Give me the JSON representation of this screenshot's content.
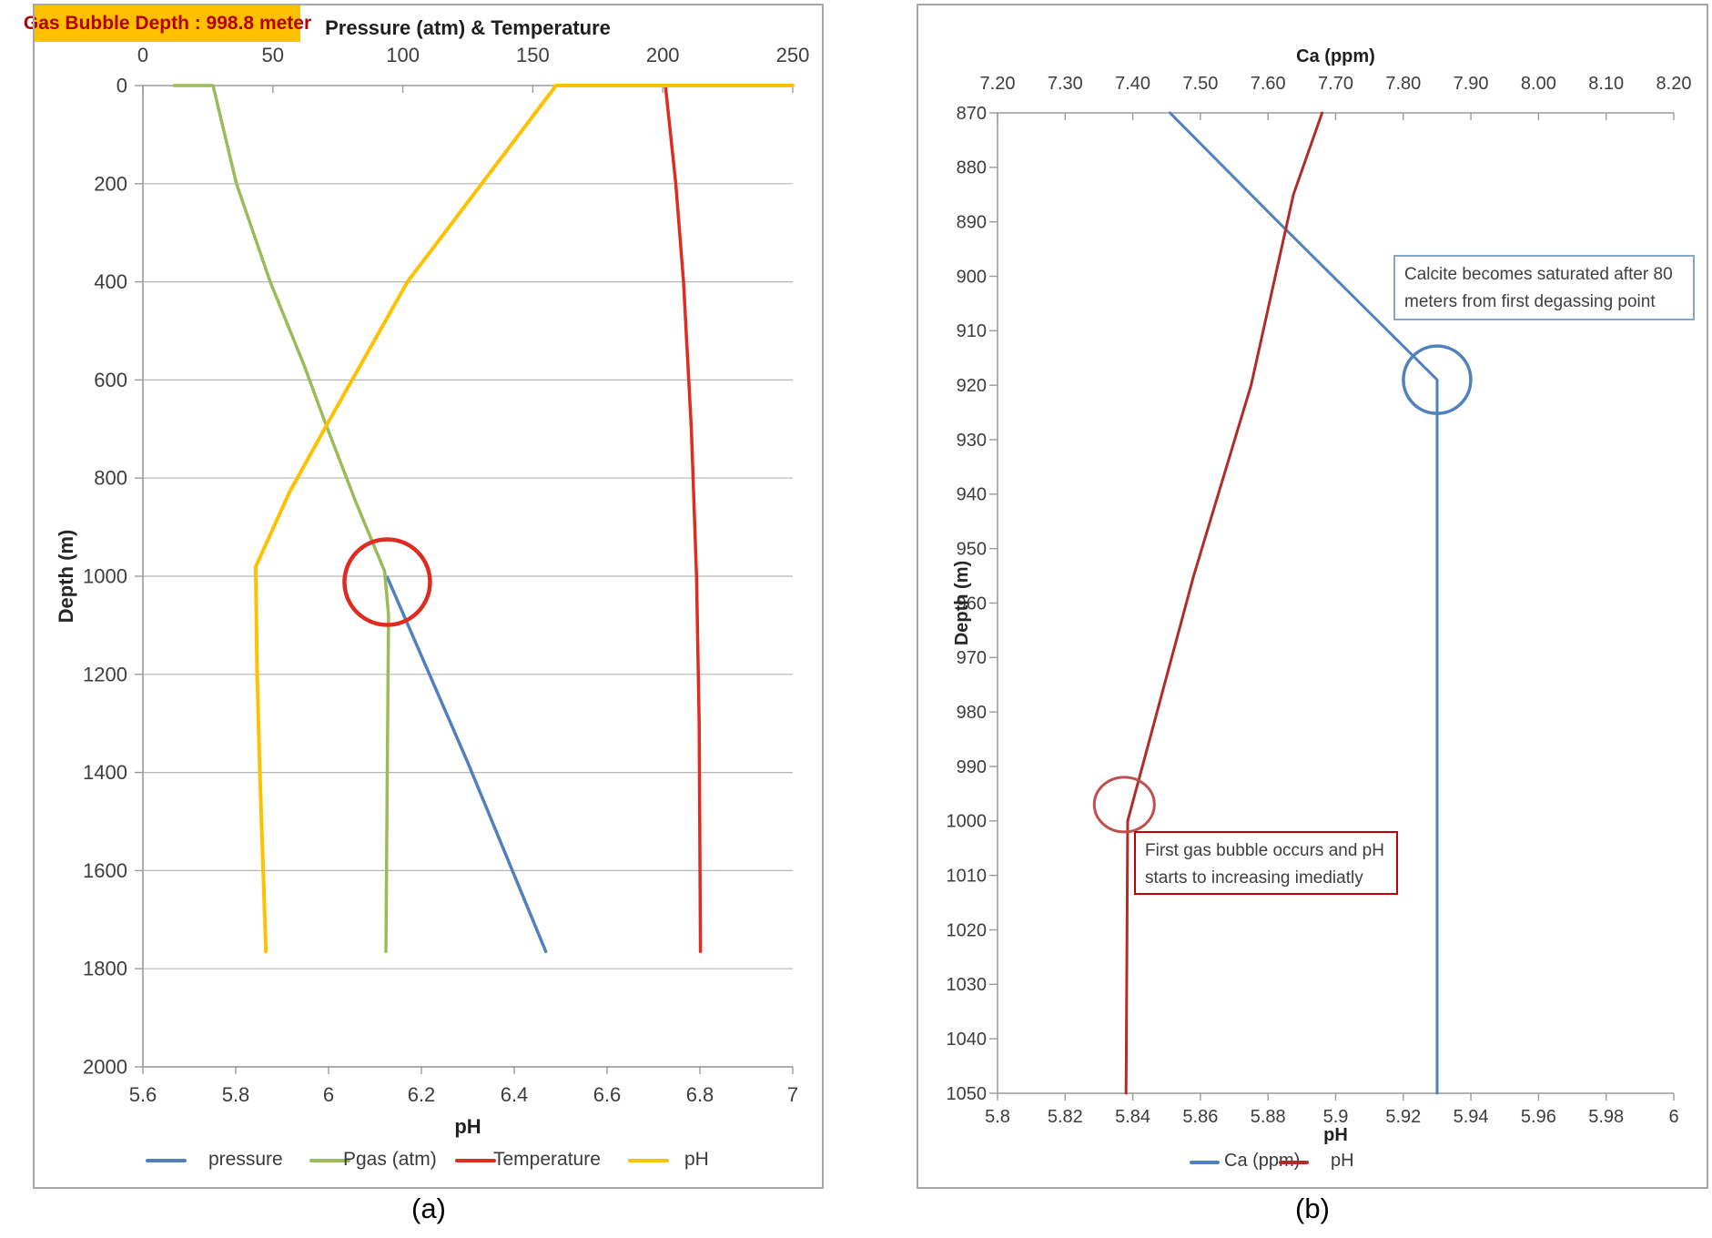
{
  "figure": {
    "caption_a": "(a)",
    "caption_b": "(b)"
  },
  "chart_data": [
    {
      "type": "line",
      "annotation": "Gas Bubble Depth : 998.8 meter",
      "x_top_axis": {
        "label": "Pressure (atm) & Temperature",
        "range": [
          0,
          250
        ],
        "ticks": [
          "0",
          "50",
          "100",
          "150",
          "200",
          "250"
        ]
      },
      "x_bottom_axis": {
        "label": "pH",
        "range": [
          5.6,
          7.0
        ],
        "ticks": [
          "5.6",
          "5.8",
          "6",
          "6.2",
          "6.4",
          "6.6",
          "6.8",
          "7"
        ]
      },
      "y_axis": {
        "label": "Depth (m)",
        "range": [
          0,
          2000
        ],
        "inverted": true,
        "ticks": [
          "0",
          "200",
          "400",
          "600",
          "800",
          "1000",
          "1200",
          "1400",
          "1600",
          "1800",
          "2000"
        ]
      },
      "grid": "horizontal",
      "series": [
        {
          "name": "pressure",
          "color": "#4f81bd",
          "axis": "top",
          "width": 3.5,
          "points": [
            [
              94,
              1002
            ],
            [
              125,
              1380
            ],
            [
              155,
              1765
            ]
          ]
        },
        {
          "name": "Pgas (atm)",
          "color": "#9bbb59",
          "axis": "top",
          "width": 3.5,
          "points": [
            [
              12,
              0
            ],
            [
              27,
              0
            ],
            [
              36,
              200
            ],
            [
              49,
              400
            ],
            [
              62,
              570
            ],
            [
              70,
              685
            ],
            [
              82,
              850
            ],
            [
              93,
              990
            ],
            [
              94.5,
              1080
            ],
            [
              94,
              1400
            ],
            [
              93.5,
              1765
            ]
          ]
        },
        {
          "name": "Temperature",
          "color": "#e02b20",
          "axis": "top",
          "width": 3.5,
          "points": [
            [
              201,
              0
            ],
            [
              205,
              200
            ],
            [
              208,
              400
            ],
            [
              211,
              700
            ],
            [
              213,
              1000
            ],
            [
              214,
              1300
            ],
            [
              214.5,
              1765
            ]
          ]
        },
        {
          "name": "pH",
          "color": "#ffc000",
          "axis": "bottom",
          "width": 4,
          "points": [
            [
              7.0,
              0
            ],
            [
              6.49,
              0
            ],
            [
              6.33,
              200
            ],
            [
              6.17,
              400
            ],
            [
              6.0,
              685
            ],
            [
              5.915,
              830
            ],
            [
              5.843,
              981
            ],
            [
              5.846,
              1200
            ],
            [
              5.852,
              1400
            ],
            [
              5.865,
              1765
            ]
          ]
        }
      ],
      "circles": [
        {
          "axis": "top",
          "x": 94,
          "depth": 1012,
          "r": 47,
          "color": "#e02b20",
          "width": 4.5
        }
      ]
    },
    {
      "type": "line",
      "x_top_axis": {
        "label": "Ca (ppm)",
        "range": [
          7.2,
          8.2
        ],
        "ticks": [
          "7.20",
          "7.30",
          "7.40",
          "7.50",
          "7.60",
          "7.70",
          "7.80",
          "7.90",
          "8.00",
          "8.10",
          "8.20"
        ]
      },
      "x_bottom_axis": {
        "label": "pH",
        "range": [
          5.8,
          6.0
        ],
        "ticks": [
          "5.8",
          "5.82",
          "5.84",
          "5.86",
          "5.88",
          "5.9",
          "5.92",
          "5.94",
          "5.96",
          "5.98",
          "6"
        ]
      },
      "y_axis": {
        "label": "Depth (m)",
        "range": [
          870,
          1050
        ],
        "inverted": true,
        "ticks": [
          "870",
          "880",
          "890",
          "900",
          "910",
          "920",
          "930",
          "940",
          "950",
          "960",
          "970",
          "980",
          "990",
          "1000",
          "1010",
          "1020",
          "1030",
          "1040",
          "1050"
        ]
      },
      "grid": "none",
      "series": [
        {
          "name": "Ca (ppm)",
          "color": "#4f81bd",
          "axis": "top",
          "width": 3,
          "points": [
            [
              7.455,
              870
            ],
            [
              7.615,
              890
            ],
            [
              7.85,
              919
            ],
            [
              7.85,
              1050
            ]
          ]
        },
        {
          "name": "pH",
          "color": "#b02c28",
          "axis": "bottom",
          "width": 3,
          "points": [
            [
              5.896,
              870
            ],
            [
              5.8875,
              885
            ],
            [
              5.875,
              920
            ],
            [
              5.858,
              955
            ],
            [
              5.845,
              985
            ],
            [
              5.8385,
              1000
            ],
            [
              5.838,
              1050
            ]
          ]
        }
      ],
      "circles": [
        {
          "axis": "top",
          "x": 7.85,
          "depth": 919,
          "r": 37,
          "color": "#4f81bd",
          "width": 3.5
        },
        {
          "axis": "bottom",
          "x": 5.8375,
          "depth": 997,
          "r": 33,
          "ry": 30,
          "color": "#c0504d",
          "width": 3
        }
      ],
      "annotations": [
        {
          "lines": [
            "Calcite becomes saturated after 80",
            "meters from first degassing point"
          ],
          "border_color": "#82a7d2"
        },
        {
          "lines": [
            "First gas bubble occurs and pH",
            "starts to increasing imediatly"
          ],
          "border_color": "#c00000"
        }
      ]
    }
  ]
}
